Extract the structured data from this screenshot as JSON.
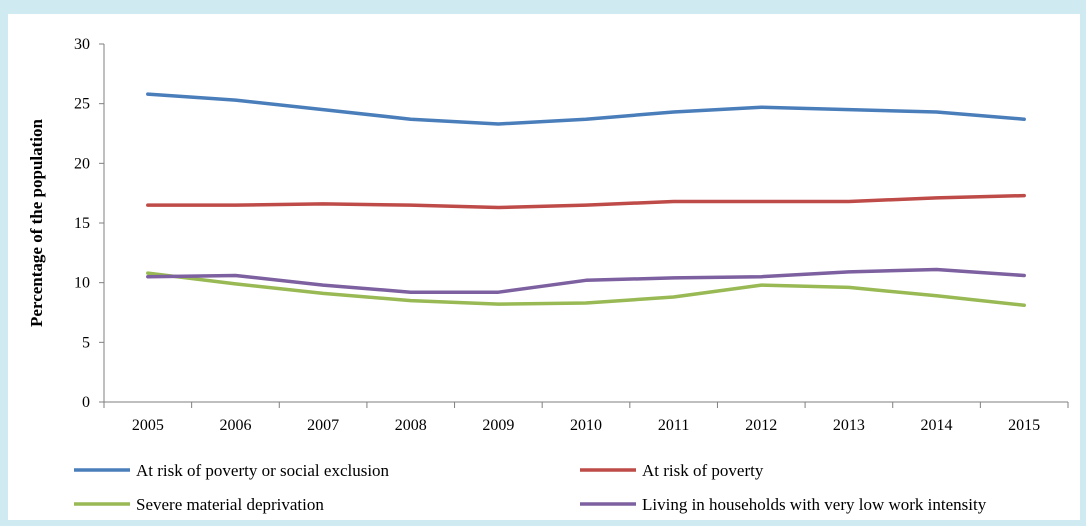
{
  "chart_data": {
    "type": "line",
    "title": "",
    "xlabel": "",
    "ylabel": "Percentage of the population",
    "ylim": [
      0,
      30
    ],
    "yticks": [
      0,
      5,
      10,
      15,
      20,
      25,
      30
    ],
    "categories": [
      "2005",
      "2006",
      "2007",
      "2008",
      "2009",
      "2010",
      "2011",
      "2012",
      "2013",
      "2014",
      "2015"
    ],
    "grid": false,
    "legend_position": "bottom",
    "series": [
      {
        "name": "At risk of poverty or social exclusion",
        "color": "#4a7ebb",
        "values": [
          25.8,
          25.3,
          24.5,
          23.7,
          23.3,
          23.7,
          24.3,
          24.7,
          24.5,
          24.3,
          23.7
        ]
      },
      {
        "name": "At risk of poverty",
        "color": "#be4b48",
        "values": [
          16.5,
          16.5,
          16.6,
          16.5,
          16.3,
          16.5,
          16.8,
          16.8,
          16.8,
          17.1,
          17.3
        ]
      },
      {
        "name": "Severe material deprivation",
        "color": "#98b954",
        "values": [
          10.8,
          9.9,
          9.1,
          8.5,
          8.2,
          8.3,
          8.8,
          9.8,
          9.6,
          8.9,
          8.1
        ]
      },
      {
        "name": "Living in households with very low work intensity",
        "color": "#7d60a0",
        "values": [
          10.5,
          10.6,
          9.8,
          9.2,
          9.2,
          10.2,
          10.4,
          10.5,
          10.9,
          11.1,
          10.6
        ]
      }
    ]
  }
}
